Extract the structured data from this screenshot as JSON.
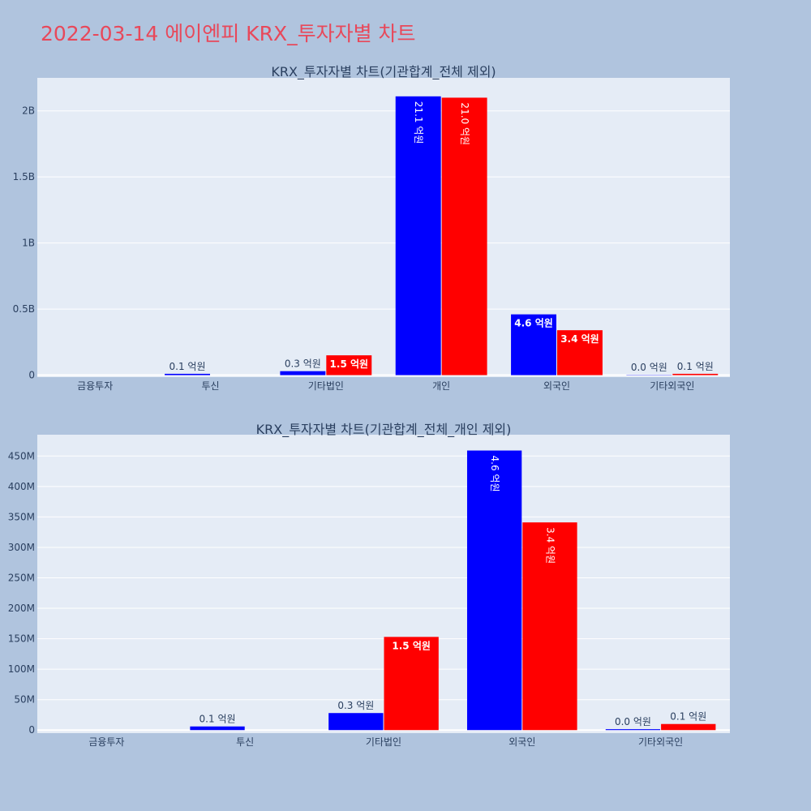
{
  "page": {
    "title": "2022-03-14 에이엔피 KRX_투자자별 차트",
    "background": "#b0c4de",
    "plot_background": "#e5ecf6"
  },
  "chart_data": [
    {
      "type": "bar",
      "title": "KRX_투자자별 차트(기관합계_전체 제외)",
      "categories": [
        "금융투자",
        "투신",
        "기타법인",
        "개인",
        "외국인",
        "기타외국인"
      ],
      "series": [
        {
          "color": "#0000ff",
          "values": [
            0,
            10000000,
            30000000,
            2110000000,
            460000000,
            2000000
          ],
          "labels": [
            "",
            "0.1 억원",
            "0.3 억원",
            "21.1 억원",
            "4.6 억원",
            "0.0 억원"
          ]
        },
        {
          "color": "#ff0000",
          "values": [
            0,
            0,
            150000000,
            2100000000,
            340000000,
            10000000
          ],
          "labels": [
            "",
            "",
            "1.5 억원",
            "21.0 억원",
            "3.4 억원",
            "0.1 억원"
          ]
        }
      ],
      "ylim": [
        -15000000,
        2250000000
      ],
      "yticks": [
        0,
        500000000,
        1000000000,
        1500000000,
        2000000000
      ],
      "ytick_labels": [
        "0",
        "0.5B",
        "1B",
        "1.5B",
        "2B"
      ],
      "grid": true
    },
    {
      "type": "bar",
      "title": "KRX_투자자별 차트(기관합계_전체_개인 제외)",
      "categories": [
        "금융투자",
        "투신",
        "기타법인",
        "외국인",
        "기타외국인"
      ],
      "series": [
        {
          "color": "#0000ff",
          "values": [
            0,
            6000000,
            28000000,
            459000000,
            1500000
          ],
          "labels": [
            "",
            "0.1 억원",
            "0.3 억원",
            "4.6 억원",
            "0.0 억원"
          ]
        },
        {
          "color": "#ff0000",
          "values": [
            0,
            0,
            153000000,
            341000000,
            10000000
          ],
          "labels": [
            "",
            "",
            "1.5 억원",
            "3.4 억원",
            "0.1 억원"
          ]
        }
      ],
      "ylim": [
        -5000000,
        485000000
      ],
      "yticks": [
        0,
        50000000,
        100000000,
        150000000,
        200000000,
        250000000,
        300000000,
        350000000,
        400000000,
        450000000
      ],
      "ytick_labels": [
        "0",
        "50M",
        "100M",
        "150M",
        "200M",
        "250M",
        "300M",
        "350M",
        "400M",
        "450M"
      ],
      "grid": true
    }
  ]
}
